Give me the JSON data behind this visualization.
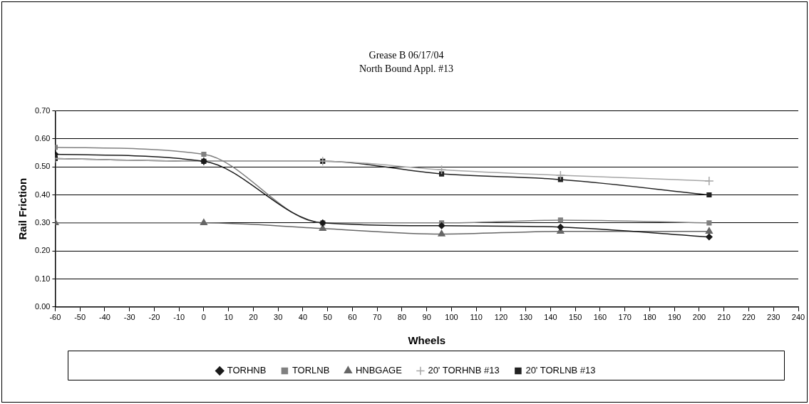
{
  "chart_data": {
    "type": "line",
    "title": "Grease B 06/17/04",
    "subtitle": "North Bound Appl. #13",
    "xlabel": "Wheels",
    "ylabel": "Rail Friction",
    "x": [
      -60,
      0,
      48,
      96,
      144,
      204
    ],
    "series": [
      {
        "name": "TORHNB",
        "color": "#1a1a1a",
        "marker": "diamond",
        "values": [
          0.545,
          0.52,
          0.3,
          0.29,
          0.285,
          0.25
        ]
      },
      {
        "name": "TORLNB",
        "color": "#808080",
        "marker": "square",
        "values": [
          0.57,
          0.545,
          0.3,
          0.3,
          0.31,
          0.3
        ]
      },
      {
        "name": "HNBGAGE",
        "color": "#666666",
        "marker": "triangle",
        "values": [
          0.3,
          0.3,
          0.28,
          0.26,
          0.27,
          0.27
        ]
      },
      {
        "name": "20' TORHNB #13",
        "color": "#a6a6a6",
        "marker": "cross",
        "values": [
          0.53,
          0.52,
          0.52,
          0.49,
          0.47,
          0.45
        ]
      },
      {
        "name": "20' TORLNB #13",
        "color": "#222222",
        "marker": "square",
        "values": [
          0.53,
          0.52,
          0.52,
          0.475,
          0.455,
          0.4
        ]
      }
    ],
    "xlim": [
      -60,
      240
    ],
    "xticks": [
      -60,
      -50,
      -40,
      -30,
      -20,
      -10,
      0,
      10,
      20,
      30,
      40,
      50,
      60,
      70,
      80,
      90,
      100,
      110,
      120,
      130,
      140,
      150,
      160,
      170,
      180,
      190,
      200,
      210,
      220,
      230,
      240
    ],
    "ylim": [
      0,
      0.7
    ],
    "yticks": [
      {
        "value": 0,
        "label": "0.00"
      },
      {
        "value": 0.1,
        "label": "0.10"
      },
      {
        "value": 0.2,
        "label": "0.20"
      },
      {
        "value": 0.3,
        "label": "0.30"
      },
      {
        "value": 0.4,
        "label": "0.40"
      },
      {
        "value": 0.5,
        "label": "0.50"
      },
      {
        "value": 0.6,
        "label": "0.60"
      },
      {
        "value": 0.7,
        "label": "0.70"
      }
    ],
    "grid": "y",
    "legend": "bottom"
  }
}
